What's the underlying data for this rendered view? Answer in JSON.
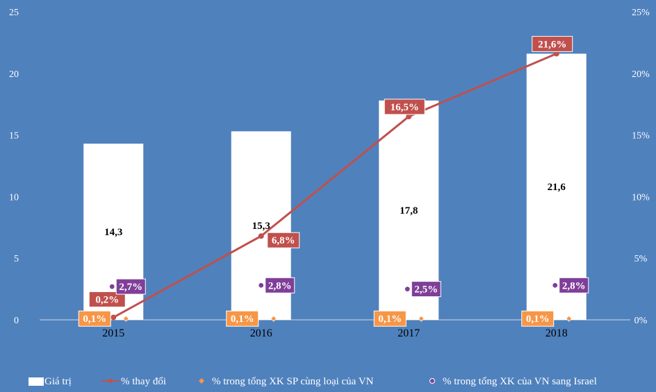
{
  "chart_data": {
    "type": "bar",
    "categories": [
      "2015",
      "2016",
      "2017",
      "2018"
    ],
    "ylim": [
      0,
      25
    ],
    "y2lim": [
      0,
      25
    ],
    "yticks": [
      "0",
      "5",
      "10",
      "15",
      "20",
      "25"
    ],
    "y2ticks": [
      "0%",
      "5%",
      "10%",
      "15%",
      "20%",
      "25%"
    ],
    "grid": false,
    "legend_position": "bottom",
    "series": [
      {
        "name": "Giá trị",
        "type": "bar",
        "axis": "left",
        "color": "#FFFFFF",
        "values": [
          14.3,
          15.3,
          17.8,
          21.6
        ],
        "labels": [
          "14,3",
          "15,3",
          "17,8",
          "21,6"
        ]
      },
      {
        "name": "% thay đổi",
        "type": "line",
        "axis": "right",
        "color": "#C0504D",
        "values": [
          0.2,
          6.8,
          16.5,
          21.6
        ],
        "labels": [
          "0,2%",
          "6,8%",
          "16,5%",
          "21,6%"
        ]
      },
      {
        "name": "% trong tổng XK SP cùng loại của VN",
        "type": "scatter",
        "axis": "right",
        "color": "#F79646",
        "values": [
          0.1,
          0.1,
          0.1,
          0.1
        ],
        "labels": [
          "0,1%",
          "0,1%",
          "0,1%",
          "0,1%"
        ]
      },
      {
        "name": "% trong tổng XK của VN sang Israel",
        "type": "scatter",
        "axis": "right",
        "color": "#7F3F98",
        "values": [
          2.7,
          2.8,
          2.5,
          2.8
        ],
        "labels": [
          "2,7%",
          "2,8%",
          "2,5%",
          "2,8%"
        ]
      }
    ]
  }
}
